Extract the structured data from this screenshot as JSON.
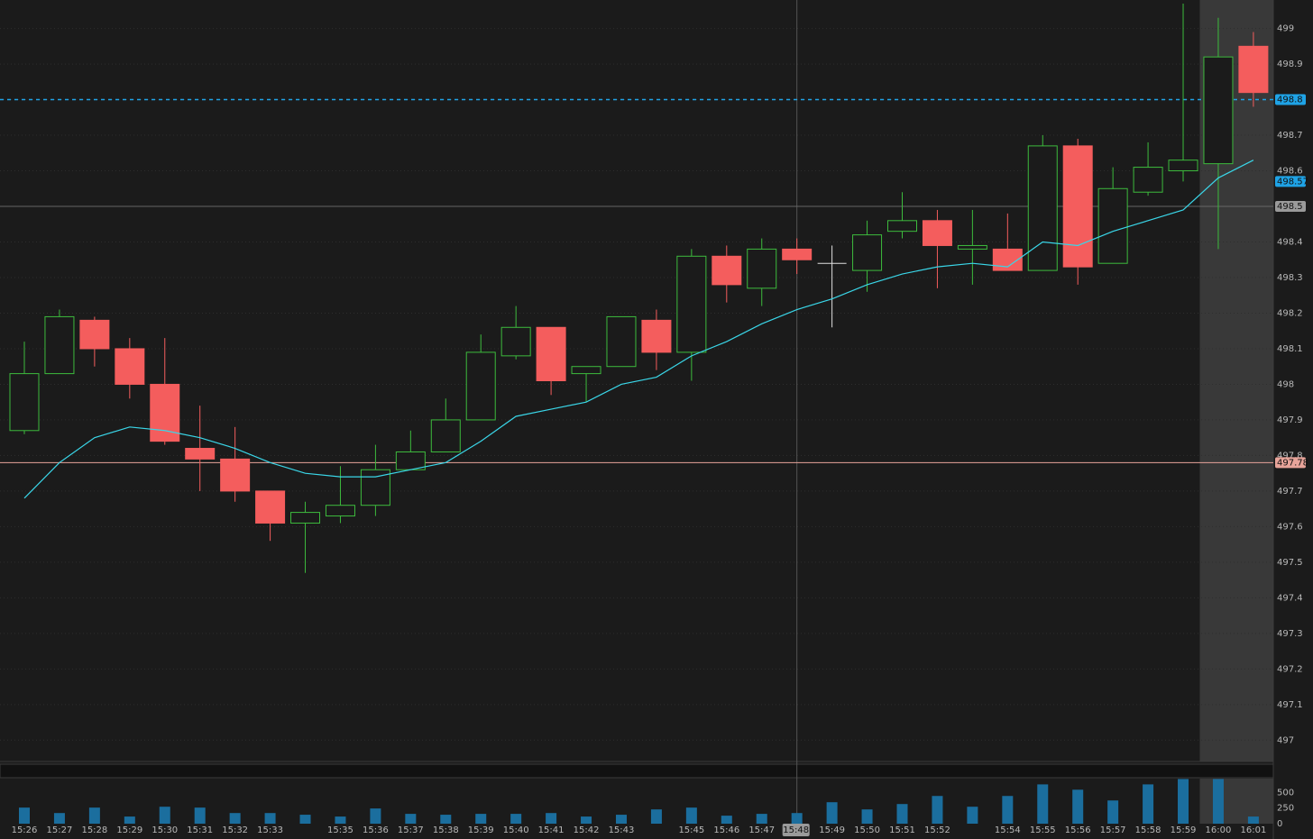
{
  "chart_data": {
    "type": "candlestick",
    "categories": [
      "15:26",
      "15:27",
      "15:28",
      "15:29",
      "15:30",
      "15:31",
      "15:32",
      "15:33",
      null,
      "15:35",
      "15:36",
      "15:37",
      "15:38",
      "15:39",
      "15:40",
      "15:41",
      "15:42",
      "15:43",
      null,
      "15:45",
      "15:46",
      "15:47",
      "15:48",
      "15:49",
      "15:50",
      "15:51",
      "15:52",
      null,
      "15:54",
      "15:55",
      "15:56",
      "15:57",
      "15:58",
      "15:59",
      "16:00",
      "16:01"
    ],
    "open": [
      497.87,
      498.03,
      498.18,
      498.1,
      498.0,
      497.82,
      497.79,
      497.7,
      497.61,
      497.63,
      497.66,
      497.76,
      497.81,
      497.9,
      498.08,
      498.16,
      498.03,
      498.05,
      498.18,
      498.09,
      498.36,
      498.27,
      498.38,
      498.34,
      498.32,
      498.43,
      498.46,
      498.38,
      498.38,
      498.32,
      498.67,
      498.34,
      498.54,
      498.6,
      498.62,
      498.95
    ],
    "high": [
      498.12,
      498.21,
      498.19,
      498.13,
      498.13,
      497.94,
      497.88,
      497.7,
      497.67,
      497.77,
      497.83,
      497.87,
      497.96,
      498.14,
      498.22,
      498.16,
      498.05,
      498.19,
      498.21,
      498.38,
      498.39,
      498.41,
      498.41,
      498.39,
      498.46,
      498.54,
      498.49,
      498.49,
      498.48,
      498.7,
      498.69,
      498.61,
      498.68,
      499.07,
      499.03,
      498.99
    ],
    "low": [
      497.86,
      498.03,
      498.05,
      497.96,
      497.83,
      497.7,
      497.67,
      497.56,
      497.47,
      497.61,
      497.63,
      497.76,
      497.81,
      497.9,
      498.07,
      497.97,
      497.95,
      498.05,
      498.04,
      498.01,
      498.23,
      498.22,
      498.31,
      498.16,
      498.26,
      498.41,
      498.27,
      498.28,
      498.32,
      498.32,
      498.28,
      498.34,
      498.53,
      498.57,
      498.38,
      498.78
    ],
    "close": [
      498.03,
      498.19,
      498.1,
      498.0,
      497.84,
      497.79,
      497.7,
      497.61,
      497.64,
      497.66,
      497.76,
      497.81,
      497.9,
      498.09,
      498.16,
      498.01,
      498.05,
      498.19,
      498.09,
      498.36,
      498.28,
      498.38,
      498.35,
      498.34,
      498.42,
      498.46,
      498.39,
      498.39,
      498.32,
      498.67,
      498.33,
      498.55,
      498.61,
      498.63,
      498.92,
      498.82
    ],
    "up_color": "#3dbb3d",
    "down_color": "#f45d5d",
    "doji_color": "#e0e0e0",
    "ma": {
      "color": "#3ad6e8",
      "values": [
        497.68,
        497.78,
        497.85,
        497.88,
        497.87,
        497.85,
        497.82,
        497.78,
        497.75,
        497.74,
        497.74,
        497.76,
        497.78,
        497.84,
        497.91,
        497.93,
        497.95,
        498.0,
        498.02,
        498.08,
        498.12,
        498.17,
        498.21,
        498.24,
        498.28,
        498.31,
        498.33,
        498.34,
        498.33,
        498.4,
        498.39,
        498.43,
        498.46,
        498.49,
        498.58,
        498.63
      ]
    },
    "ylim": [
      496.94,
      499.08
    ],
    "yticks": [
      497,
      497.1,
      497.2,
      497.3,
      497.4,
      497.5,
      497.6,
      497.7,
      497.8,
      497.9,
      498,
      498.1,
      498.2,
      498.3,
      498.4,
      498.5,
      498.6,
      498.7,
      498.8,
      498.9,
      499
    ],
    "grid": true,
    "price_markers": [
      {
        "value": 498.8,
        "color": "#1fa3e6",
        "line": "dashed"
      },
      {
        "value": 498.57,
        "color": "#1fa3e6"
      },
      {
        "value": 497.78,
        "color": "#e8a49a",
        "line": "solid"
      }
    ],
    "crosshair": {
      "x": "15:48",
      "y": 498.5
    },
    "shade_from": "16:00",
    "volume": {
      "color": "#1b6e9e",
      "values": [
        257,
        170,
        257,
        114,
        271,
        257,
        170,
        170,
        143,
        114,
        243,
        157,
        143,
        157,
        157,
        170,
        114,
        143,
        228,
        257,
        128,
        157,
        170,
        343,
        228,
        314,
        443,
        271,
        443,
        628,
        543,
        371,
        628,
        714,
        714,
        114
      ],
      "ylim": [
        0,
        720
      ],
      "yticks": [
        0,
        250,
        500
      ]
    }
  }
}
